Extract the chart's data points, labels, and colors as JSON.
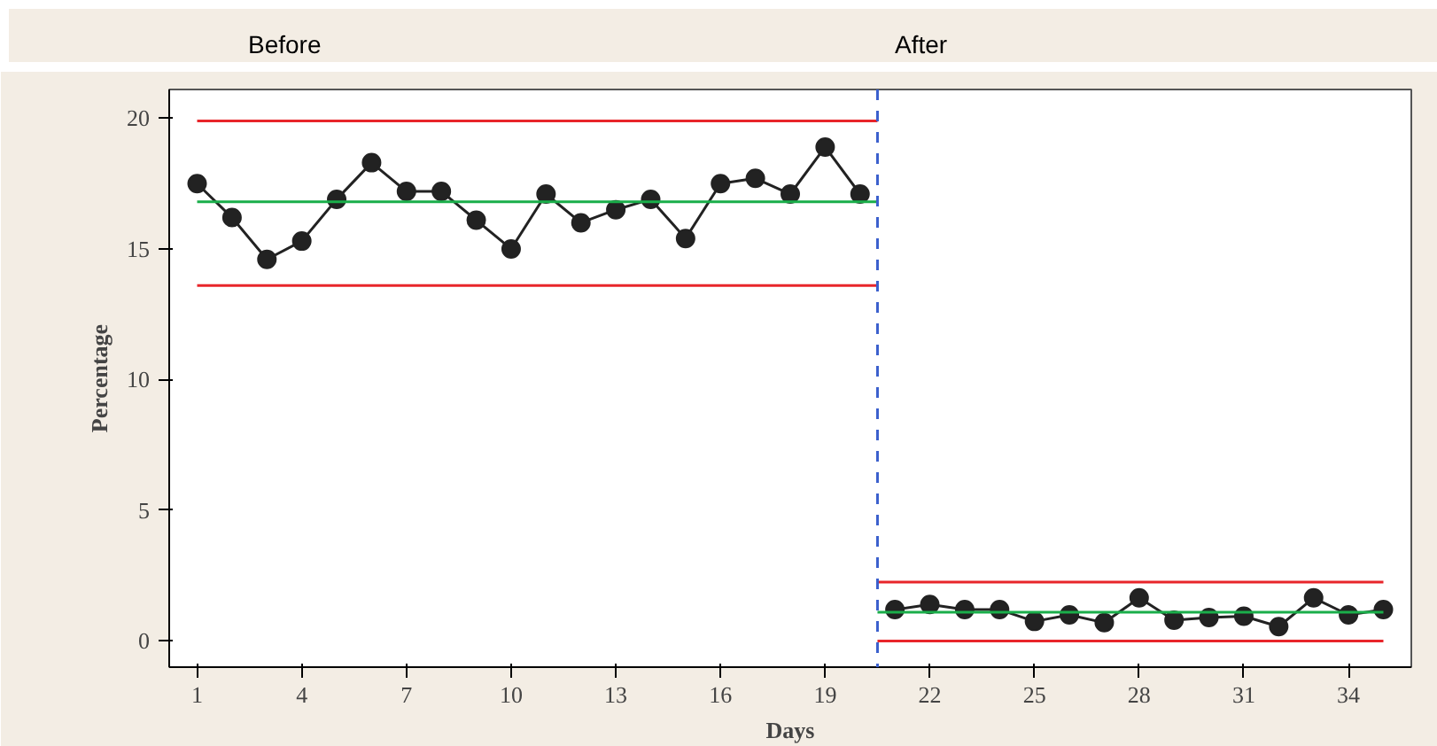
{
  "chart_data": {
    "type": "line",
    "xlabel": "Days",
    "ylabel": "Percentage",
    "annotations": [
      "Before",
      "After"
    ],
    "xlim": [
      0.2,
      35.8
    ],
    "ylim": [
      -1,
      21.1
    ],
    "xticks": [
      1,
      4,
      7,
      10,
      13,
      16,
      19,
      22,
      25,
      28,
      31,
      34
    ],
    "yticks": [
      0,
      5,
      10,
      15,
      20
    ],
    "grid": false,
    "series": [
      {
        "color": "#222222",
        "marker": "circle",
        "x": [
          1,
          2,
          3,
          4,
          5,
          6,
          7,
          8,
          9,
          10,
          11,
          12,
          13,
          14,
          15,
          16,
          17,
          18,
          19,
          20
        ],
        "values": [
          17.5,
          16.2,
          14.6,
          15.3,
          16.9,
          18.3,
          17.2,
          17.2,
          16.1,
          15.0,
          17.1,
          16.0,
          16.5,
          16.9,
          15.4,
          17.5,
          17.7,
          17.1,
          18.9,
          17.1
        ]
      },
      {
        "color": "#222222",
        "marker": "circle",
        "x": [
          21,
          22,
          23,
          24,
          25,
          26,
          27,
          28,
          29,
          30,
          31,
          32,
          33,
          34,
          35
        ],
        "values": [
          1.2,
          1.4,
          1.2,
          1.2,
          0.75,
          1.0,
          0.7,
          1.65,
          0.8,
          0.9,
          0.95,
          0.55,
          1.65,
          1.0,
          1.2
        ]
      },
      {
        "color": "#e8252a",
        "marker": "none",
        "x": [
          1,
          20.5
        ],
        "values": [
          19.9,
          19.9
        ]
      },
      {
        "color": "#1aae4a",
        "marker": "none",
        "x": [
          1,
          20.5
        ],
        "values": [
          16.8,
          16.8
        ]
      },
      {
        "color": "#e8252a",
        "marker": "none",
        "x": [
          1,
          20.5
        ],
        "values": [
          13.6,
          13.6
        ]
      },
      {
        "color": "#e8252a",
        "marker": "none",
        "x": [
          20.5,
          35
        ],
        "values": [
          2.25,
          2.25
        ]
      },
      {
        "color": "#1aae4a",
        "marker": "none",
        "x": [
          20.5,
          35
        ],
        "values": [
          1.1,
          1.1
        ]
      },
      {
        "color": "#e8252a",
        "marker": "none",
        "x": [
          20.5,
          35
        ],
        "values": [
          0,
          0
        ]
      }
    ],
    "ref_lines": [
      {
        "axis": "x",
        "value": 20.5,
        "label": null,
        "color": "#3a5fcd",
        "line_style": "dashed"
      }
    ]
  }
}
